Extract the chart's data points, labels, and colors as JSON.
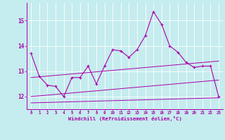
{
  "xlabel": "Windchill (Refroidissement éolien,°C)",
  "xlim": [
    -0.5,
    23.5
  ],
  "ylim": [
    11.5,
    15.7
  ],
  "yticks": [
    12,
    13,
    14,
    15
  ],
  "xticks": [
    0,
    1,
    2,
    3,
    4,
    5,
    6,
    7,
    8,
    9,
    10,
    11,
    12,
    13,
    14,
    15,
    16,
    17,
    18,
    19,
    20,
    21,
    22,
    23
  ],
  "bg_color": "#c5ecee",
  "line_color": "#aa00aa",
  "main_x": [
    0,
    1,
    2,
    3,
    4,
    5,
    6,
    7,
    8,
    9,
    10,
    11,
    12,
    13,
    14,
    15,
    16,
    17,
    18,
    19,
    20,
    21,
    22,
    23
  ],
  "main_y": [
    13.7,
    12.8,
    12.45,
    12.4,
    12.0,
    12.75,
    12.75,
    13.2,
    12.5,
    13.2,
    13.85,
    13.8,
    13.55,
    13.85,
    14.4,
    15.35,
    14.85,
    14.0,
    13.75,
    13.35,
    13.15,
    13.2,
    13.2,
    12.0
  ],
  "line1_x": [
    0,
    23
  ],
  "line1_y": [
    11.75,
    11.95
  ],
  "line2_x": [
    0,
    23
  ],
  "line2_y": [
    12.0,
    12.65
  ],
  "line3_x": [
    0,
    23
  ],
  "line3_y": [
    12.75,
    13.4
  ],
  "grid_color": "#ffffff",
  "spine_color": "#aa00aa"
}
